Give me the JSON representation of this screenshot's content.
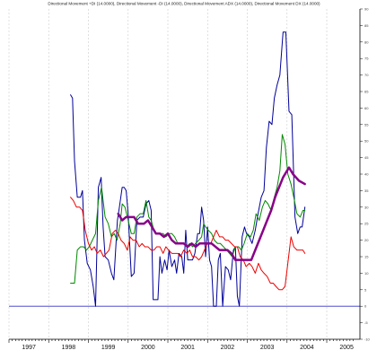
{
  "chart_data": {
    "type": "line",
    "title": "Directional Movement +DI (14.0000), Directional Movement -DI (14.0000), Directional Movement ADX (14.0000), Directional Movement DX (14.0000)",
    "xlabel": "",
    "ylabel": "",
    "xlim": [
      1997.0,
      2005.7
    ],
    "ylim": [
      -10,
      90
    ],
    "x_ticks": [
      "1997",
      "1998",
      "1999",
      "2000",
      "2001",
      "2002",
      "2003",
      "2004",
      "2005"
    ],
    "y_ticks": [
      -10,
      -5,
      0,
      5,
      10,
      15,
      20,
      25,
      30,
      35,
      40,
      45,
      50,
      55,
      60,
      65,
      70,
      75,
      80,
      85,
      90
    ],
    "y_tick_labels": [
      "-10",
      "-5",
      "0",
      "5",
      "10",
      "15",
      "20",
      "25",
      "30",
      "35",
      "40",
      "45",
      "50",
      "55",
      "60",
      "65",
      "70",
      "75",
      "80",
      "85",
      "90"
    ],
    "y_axis_position": "right",
    "grid": "vertical dashed at year boundaries",
    "reference_line": {
      "y": 0,
      "color": "#3333cc"
    },
    "series": [
      {
        "color": "#000099",
        "stroke_width": 1,
        "points": [
          [
            1998.55,
            64
          ],
          [
            1998.6,
            63
          ],
          [
            1998.65,
            44
          ],
          [
            1998.72,
            33
          ],
          [
            1998.8,
            33
          ],
          [
            1998.85,
            35
          ],
          [
            1998.9,
            20
          ],
          [
            1998.97,
            13
          ],
          [
            1999.05,
            11
          ],
          [
            1999.12,
            6
          ],
          [
            1999.18,
            0
          ],
          [
            1999.25,
            36
          ],
          [
            1999.32,
            39
          ],
          [
            1999.37,
            24
          ],
          [
            1999.42,
            15
          ],
          [
            1999.5,
            14
          ],
          [
            1999.58,
            10
          ],
          [
            1999.64,
            8
          ],
          [
            1999.68,
            16
          ],
          [
            1999.73,
            26
          ],
          [
            1999.78,
            30
          ],
          [
            1999.85,
            36
          ],
          [
            1999.9,
            36
          ],
          [
            1999.95,
            35
          ],
          [
            2000.0,
            28
          ],
          [
            2000.08,
            9
          ],
          [
            2000.15,
            10
          ],
          [
            2000.22,
            26
          ],
          [
            2000.3,
            27
          ],
          [
            2000.38,
            27
          ],
          [
            2000.45,
            31
          ],
          [
            2000.52,
            32
          ],
          [
            2000.58,
            29
          ],
          [
            2000.63,
            2
          ],
          [
            2000.7,
            2
          ],
          [
            2000.75,
            2
          ],
          [
            2000.8,
            15
          ],
          [
            2000.85,
            10
          ],
          [
            2000.92,
            14
          ],
          [
            2000.98,
            11
          ],
          [
            2001.03,
            17
          ],
          [
            2001.1,
            12
          ],
          [
            2001.17,
            14
          ],
          [
            2001.22,
            10
          ],
          [
            2001.28,
            16
          ],
          [
            2001.35,
            15
          ],
          [
            2001.4,
            10
          ],
          [
            2001.45,
            23
          ],
          [
            2001.5,
            14
          ],
          [
            2001.55,
            14
          ],
          [
            2001.62,
            14
          ],
          [
            2001.68,
            16
          ],
          [
            2001.75,
            22
          ],
          [
            2001.8,
            22
          ],
          [
            2001.85,
            30
          ],
          [
            2001.9,
            26
          ],
          [
            2001.95,
            15
          ],
          [
            2002.0,
            24
          ],
          [
            2002.05,
            14
          ],
          [
            2002.1,
            12
          ],
          [
            2002.15,
            0
          ],
          [
            2002.22,
            0
          ],
          [
            2002.27,
            14
          ],
          [
            2002.32,
            16
          ],
          [
            2002.38,
            0
          ],
          [
            2002.45,
            12
          ],
          [
            2002.52,
            11
          ],
          [
            2002.58,
            8
          ],
          [
            2002.65,
            17
          ],
          [
            2002.7,
            18
          ],
          [
            2002.75,
            3
          ],
          [
            2002.8,
            0
          ],
          [
            2002.87,
            21
          ],
          [
            2002.93,
            24
          ],
          [
            2002.98,
            22
          ],
          [
            2003.05,
            21
          ],
          [
            2003.12,
            19
          ],
          [
            2003.2,
            23
          ],
          [
            2003.27,
            28
          ],
          [
            2003.35,
            33
          ],
          [
            2003.42,
            35
          ],
          [
            2003.48,
            48
          ],
          [
            2003.55,
            56
          ],
          [
            2003.62,
            55
          ],
          [
            2003.68,
            63
          ],
          [
            2003.75,
            67
          ],
          [
            2003.82,
            70
          ],
          [
            2003.9,
            83
          ],
          [
            2003.97,
            83
          ],
          [
            2004.05,
            59
          ],
          [
            2004.12,
            58
          ],
          [
            2004.2,
            27
          ],
          [
            2004.27,
            22
          ],
          [
            2004.33,
            24
          ],
          [
            2004.38,
            24
          ],
          [
            2004.45,
            30
          ]
        ]
      },
      {
        "color": "#008800",
        "stroke_width": 1,
        "points": [
          [
            1998.55,
            7
          ],
          [
            1998.65,
            7
          ],
          [
            1998.72,
            17
          ],
          [
            1998.8,
            18
          ],
          [
            1998.88,
            18
          ],
          [
            1998.95,
            17
          ],
          [
            1999.02,
            18
          ],
          [
            1999.1,
            20
          ],
          [
            1999.18,
            22
          ],
          [
            1999.25,
            32
          ],
          [
            1999.33,
            36
          ],
          [
            1999.42,
            27
          ],
          [
            1999.5,
            25
          ],
          [
            1999.58,
            21
          ],
          [
            1999.65,
            22
          ],
          [
            1999.72,
            20
          ],
          [
            1999.8,
            25
          ],
          [
            1999.85,
            31
          ],
          [
            1999.92,
            30
          ],
          [
            2000.0,
            26
          ],
          [
            2000.08,
            22
          ],
          [
            2000.15,
            22
          ],
          [
            2000.22,
            27
          ],
          [
            2000.3,
            28
          ],
          [
            2000.38,
            28
          ],
          [
            2000.45,
            32
          ],
          [
            2000.52,
            27
          ],
          [
            2000.58,
            26
          ],
          [
            2000.65,
            23
          ],
          [
            2000.72,
            22
          ],
          [
            2000.8,
            22
          ],
          [
            2000.88,
            22
          ],
          [
            2000.95,
            21
          ],
          [
            2001.02,
            22
          ],
          [
            2001.1,
            22
          ],
          [
            2001.17,
            21
          ],
          [
            2001.25,
            19
          ],
          [
            2001.32,
            19
          ],
          [
            2001.4,
            19
          ],
          [
            2001.47,
            18
          ],
          [
            2001.55,
            19
          ],
          [
            2001.62,
            18
          ],
          [
            2001.7,
            19
          ],
          [
            2001.78,
            20
          ],
          [
            2001.85,
            21
          ],
          [
            2001.9,
            25
          ],
          [
            2001.95,
            24
          ],
          [
            2002.02,
            23
          ],
          [
            2002.1,
            22
          ],
          [
            2002.17,
            20
          ],
          [
            2002.25,
            19
          ],
          [
            2002.32,
            19
          ],
          [
            2002.4,
            18
          ],
          [
            2002.48,
            17
          ],
          [
            2002.55,
            16
          ],
          [
            2002.62,
            15
          ],
          [
            2002.7,
            18
          ],
          [
            2002.78,
            18
          ],
          [
            2002.85,
            17
          ],
          [
            2002.92,
            19
          ],
          [
            2003.0,
            22
          ],
          [
            2003.08,
            21
          ],
          [
            2003.15,
            23
          ],
          [
            2003.22,
            28
          ],
          [
            2003.3,
            26
          ],
          [
            2003.38,
            30
          ],
          [
            2003.45,
            32
          ],
          [
            2003.52,
            31
          ],
          [
            2003.6,
            29
          ],
          [
            2003.68,
            33
          ],
          [
            2003.75,
            36
          ],
          [
            2003.82,
            41
          ],
          [
            2003.88,
            52
          ],
          [
            2003.95,
            49
          ],
          [
            2004.02,
            40
          ],
          [
            2004.1,
            37
          ],
          [
            2004.17,
            33
          ],
          [
            2004.25,
            28
          ],
          [
            2004.33,
            27
          ],
          [
            2004.4,
            29
          ],
          [
            2004.45,
            29
          ]
        ]
      },
      {
        "color": "#ee0000",
        "stroke_width": 1,
        "points": [
          [
            1998.55,
            33
          ],
          [
            1998.62,
            32
          ],
          [
            1998.7,
            30
          ],
          [
            1998.78,
            30
          ],
          [
            1998.85,
            29
          ],
          [
            1998.92,
            23
          ],
          [
            1999.0,
            19
          ],
          [
            1999.08,
            17
          ],
          [
            1999.15,
            18
          ],
          [
            1999.22,
            16
          ],
          [
            1999.3,
            17
          ],
          [
            1999.38,
            15
          ],
          [
            1999.45,
            16
          ],
          [
            1999.52,
            17
          ],
          [
            1999.6,
            22
          ],
          [
            1999.68,
            23
          ],
          [
            1999.75,
            22
          ],
          [
            1999.82,
            20
          ],
          [
            1999.9,
            19
          ],
          [
            1999.98,
            17
          ],
          [
            2000.05,
            21
          ],
          [
            2000.12,
            20
          ],
          [
            2000.2,
            20
          ],
          [
            2000.28,
            18
          ],
          [
            2000.35,
            19
          ],
          [
            2000.42,
            18
          ],
          [
            2000.5,
            18
          ],
          [
            2000.58,
            17
          ],
          [
            2000.65,
            17
          ],
          [
            2000.72,
            18
          ],
          [
            2000.8,
            18
          ],
          [
            2000.88,
            16
          ],
          [
            2000.95,
            18
          ],
          [
            2001.02,
            17
          ],
          [
            2001.1,
            16
          ],
          [
            2001.18,
            16
          ],
          [
            2001.25,
            16
          ],
          [
            2001.32,
            15
          ],
          [
            2001.4,
            17
          ],
          [
            2001.48,
            16
          ],
          [
            2001.55,
            17
          ],
          [
            2001.62,
            15
          ],
          [
            2001.7,
            15
          ],
          [
            2001.78,
            14
          ],
          [
            2001.85,
            15
          ],
          [
            2001.92,
            17
          ],
          [
            2002.0,
            19
          ],
          [
            2002.08,
            19
          ],
          [
            2002.15,
            21
          ],
          [
            2002.22,
            23
          ],
          [
            2002.3,
            21
          ],
          [
            2002.38,
            21
          ],
          [
            2002.45,
            20
          ],
          [
            2002.52,
            20
          ],
          [
            2002.6,
            19
          ],
          [
            2002.68,
            18
          ],
          [
            2002.75,
            18
          ],
          [
            2002.82,
            15
          ],
          [
            2002.9,
            14
          ],
          [
            2002.97,
            12
          ],
          [
            2003.05,
            13
          ],
          [
            2003.12,
            12
          ],
          [
            2003.2,
            10
          ],
          [
            2003.28,
            13
          ],
          [
            2003.35,
            11
          ],
          [
            2003.42,
            10
          ],
          [
            2003.5,
            9
          ],
          [
            2003.58,
            7
          ],
          [
            2003.65,
            7
          ],
          [
            2003.72,
            6
          ],
          [
            2003.8,
            5
          ],
          [
            2003.88,
            5
          ],
          [
            2003.95,
            6
          ],
          [
            2004.02,
            13
          ],
          [
            2004.1,
            21
          ],
          [
            2004.17,
            18
          ],
          [
            2004.25,
            17
          ],
          [
            2004.33,
            17
          ],
          [
            2004.4,
            17
          ],
          [
            2004.45,
            16
          ]
        ]
      },
      {
        "color": "#880088",
        "stroke_width": 2.5,
        "points": [
          [
            1999.75,
            28
          ],
          [
            1999.85,
            26
          ],
          [
            1999.95,
            27
          ],
          [
            2000.05,
            27
          ],
          [
            2000.15,
            27
          ],
          [
            2000.25,
            25
          ],
          [
            2000.4,
            25
          ],
          [
            2000.5,
            26
          ],
          [
            2000.6,
            24
          ],
          [
            2000.7,
            22
          ],
          [
            2000.8,
            22
          ],
          [
            2000.9,
            21
          ],
          [
            2001.0,
            22
          ],
          [
            2001.1,
            20
          ],
          [
            2001.2,
            19
          ],
          [
            2001.3,
            19
          ],
          [
            2001.4,
            19
          ],
          [
            2001.5,
            18
          ],
          [
            2001.6,
            19
          ],
          [
            2001.7,
            18
          ],
          [
            2001.8,
            19
          ],
          [
            2001.9,
            19
          ],
          [
            2002.0,
            19
          ],
          [
            2002.1,
            19
          ],
          [
            2002.2,
            18
          ],
          [
            2002.3,
            17
          ],
          [
            2002.4,
            17
          ],
          [
            2002.5,
            17
          ],
          [
            2002.6,
            16
          ],
          [
            2002.7,
            14
          ],
          [
            2002.8,
            14
          ],
          [
            2002.9,
            14
          ],
          [
            2003.0,
            14
          ],
          [
            2003.1,
            14
          ],
          [
            2003.2,
            17
          ],
          [
            2003.3,
            20
          ],
          [
            2003.4,
            23
          ],
          [
            2003.5,
            26
          ],
          [
            2003.6,
            29
          ],
          [
            2003.7,
            33
          ],
          [
            2003.8,
            36
          ],
          [
            2003.9,
            39
          ],
          [
            2004.0,
            41
          ],
          [
            2004.05,
            42
          ],
          [
            2004.15,
            40
          ],
          [
            2004.3,
            38
          ],
          [
            2004.45,
            37
          ]
        ]
      }
    ]
  }
}
